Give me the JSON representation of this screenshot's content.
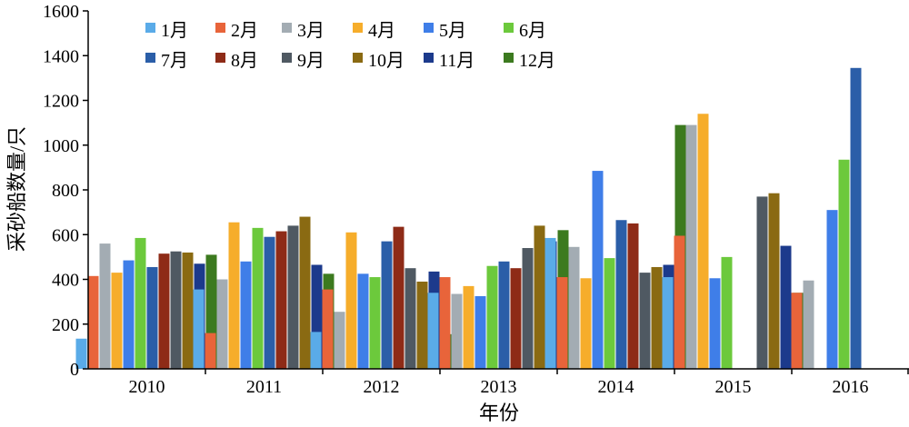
{
  "chart_data": {
    "type": "bar",
    "categories": [
      "2010",
      "2011",
      "2012",
      "2013",
      "2014",
      "2015",
      "2016"
    ],
    "xlabel": "年份",
    "ylabel": "采砂船数量/只",
    "ylim": [
      0,
      1600
    ],
    "yticks": [
      0,
      200,
      400,
      600,
      800,
      1000,
      1200,
      1400,
      1600
    ],
    "grid": false,
    "legend_position": "top-left, inside plot, 2 rows × 6 columns",
    "series": [
      {
        "name": "1月",
        "color": "#5aabe8",
        "values": [
          135,
          355,
          165,
          340,
          585,
          410,
          null
        ]
      },
      {
        "name": "2月",
        "color": "#e8643a",
        "values": [
          415,
          160,
          355,
          410,
          410,
          595,
          340
        ]
      },
      {
        "name": "3月",
        "color": "#a3acb3",
        "values": [
          560,
          400,
          255,
          335,
          545,
          1090,
          395
        ]
      },
      {
        "name": "4月",
        "color": "#f6ad2b",
        "values": [
          430,
          655,
          610,
          370,
          405,
          1140,
          null
        ]
      },
      {
        "name": "5月",
        "color": "#3f7ee8",
        "values": [
          485,
          480,
          425,
          325,
          885,
          405,
          710
        ]
      },
      {
        "name": "6月",
        "color": "#6cc93c",
        "values": [
          585,
          630,
          410,
          460,
          495,
          500,
          935
        ]
      },
      {
        "name": "7月",
        "color": "#2b5ea8",
        "values": [
          455,
          590,
          570,
          480,
          665,
          null,
          1345
        ]
      },
      {
        "name": "8月",
        "color": "#8e2b17",
        "values": [
          515,
          615,
          635,
          450,
          650,
          null,
          null
        ]
      },
      {
        "name": "9月",
        "color": "#4f5962",
        "values": [
          525,
          640,
          450,
          540,
          430,
          770,
          null
        ]
      },
      {
        "name": "10月",
        "color": "#8a6a12",
        "values": [
          520,
          680,
          390,
          640,
          455,
          785,
          null
        ]
      },
      {
        "name": "11月",
        "color": "#1c3a8c",
        "values": [
          470,
          465,
          435,
          570,
          465,
          550,
          null
        ]
      },
      {
        "name": "12月",
        "color": "#3c7a1f",
        "values": [
          510,
          425,
          155,
          620,
          1090,
          340,
          null
        ]
      }
    ]
  }
}
